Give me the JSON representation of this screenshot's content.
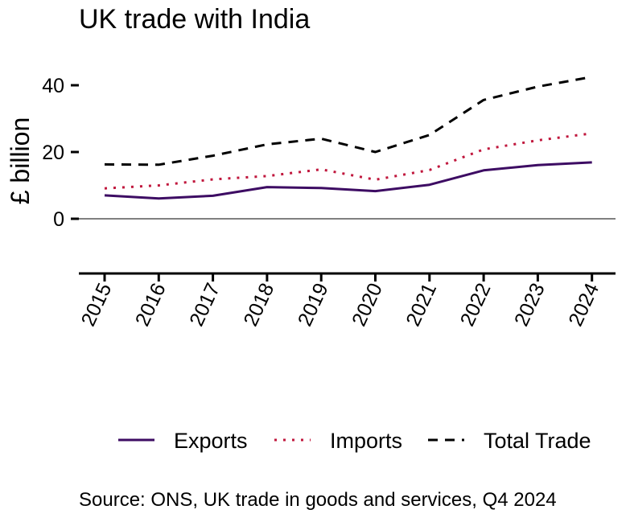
{
  "chart_data": {
    "type": "line",
    "title": "UK trade with India",
    "xlabel": "",
    "ylabel": "£ billion",
    "x": [
      "2015",
      "2016",
      "2017",
      "2018",
      "2019",
      "2020",
      "2021",
      "2022",
      "2023",
      "2024"
    ],
    "yticks": [
      "0",
      "20",
      "40"
    ],
    "ylim": [
      -16.5,
      50
    ],
    "series": [
      {
        "name": "Exports",
        "color": "#3d0c63",
        "style": "solid",
        "values": [
          7.0,
          6.1,
          6.9,
          9.5,
          9.2,
          8.3,
          10.2,
          14.5,
          16.1,
          16.9
        ]
      },
      {
        "name": "Imports",
        "color": "#c0173d",
        "style": "dotted",
        "values": [
          9.1,
          10.0,
          11.8,
          12.8,
          14.8,
          11.7,
          14.6,
          20.8,
          23.5,
          25.6
        ]
      },
      {
        "name": "Total Trade",
        "color": "#000000",
        "style": "dashed",
        "values": [
          16.3,
          16.2,
          18.9,
          22.3,
          24.0,
          20.0,
          25.1,
          35.6,
          39.6,
          42.5
        ]
      }
    ],
    "grid": false,
    "legend": "bottom",
    "source": "Source: ONS, UK trade in goods and services, Q4 2024"
  }
}
